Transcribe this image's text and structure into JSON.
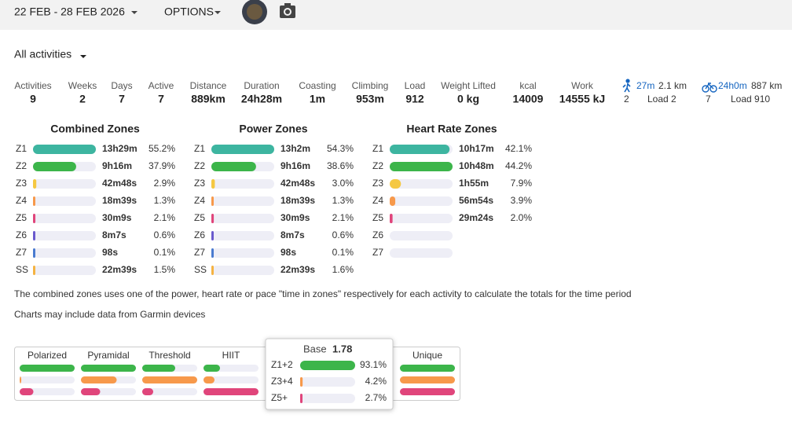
{
  "header": {
    "date_range": "22 FEB - 28 FEB 2026",
    "options": "OPTIONS"
  },
  "filter": "All activities",
  "stats": [
    {
      "label": "Activities",
      "value": "9"
    },
    {
      "label": "Weeks",
      "value": "2"
    },
    {
      "label": "Days",
      "value": "7"
    },
    {
      "label": "Active",
      "value": "7"
    },
    {
      "label": "Distance",
      "value": "889km"
    },
    {
      "label": "Duration",
      "value": "24h28m"
    },
    {
      "label": "Coasting",
      "value": "1m"
    },
    {
      "label": "Climbing",
      "value": "953m"
    },
    {
      "label": "Load",
      "value": "912"
    },
    {
      "label": "Weight Lifted",
      "value": "0 kg"
    },
    {
      "label": "kcal",
      "value": "14009"
    },
    {
      "label": "Work",
      "value": "14555 kJ"
    }
  ],
  "sports": [
    {
      "time": "27m",
      "distance": "2.1 km",
      "count": "2",
      "load": "Load 2"
    },
    {
      "time": "24h0m",
      "distance": "887 km",
      "count": "7",
      "load": "Load 910"
    }
  ],
  "zone_tables": [
    {
      "title": "Combined Zones",
      "rows": [
        {
          "zone": "Z1",
          "color": "#3db5a0",
          "time": "13h29m",
          "percent": {
            "value": 55.2,
            "label": "55.2%"
          }
        },
        {
          "zone": "Z2",
          "color": "#3cb54a",
          "time": "9h16m",
          "percent": {
            "value": 37.9,
            "label": "37.9%"
          }
        },
        {
          "zone": "Z3",
          "color": "#f5c842",
          "time": "42m48s",
          "percent": {
            "value": 2.9,
            "label": "2.9%"
          }
        },
        {
          "zone": "Z4",
          "color": "#f7994b",
          "time": "18m39s",
          "percent": {
            "value": 1.3,
            "label": "1.3%"
          }
        },
        {
          "zone": "Z5",
          "color": "#e0457b",
          "time": "30m9s",
          "percent": {
            "value": 2.1,
            "label": "2.1%"
          }
        },
        {
          "zone": "Z6",
          "color": "#6a5acd",
          "time": "8m7s",
          "percent": {
            "value": 0.6,
            "label": "0.6%"
          }
        },
        {
          "zone": "Z7",
          "color": "#4a7bd0",
          "time": "98s",
          "percent": {
            "value": 0.1,
            "label": "0.1%"
          }
        },
        {
          "zone": "SS",
          "color": "#f5b342",
          "time": "22m39s",
          "percent": {
            "value": 1.5,
            "label": "1.5%"
          }
        }
      ]
    },
    {
      "title": "Power Zones",
      "rows": [
        {
          "zone": "Z1",
          "color": "#3db5a0",
          "time": "13h2m",
          "percent": {
            "value": 54.3,
            "label": "54.3%"
          }
        },
        {
          "zone": "Z2",
          "color": "#3cb54a",
          "time": "9h16m",
          "percent": {
            "value": 38.6,
            "label": "38.6%"
          }
        },
        {
          "zone": "Z3",
          "color": "#f5c842",
          "time": "42m48s",
          "percent": {
            "value": 3.0,
            "label": "3.0%"
          }
        },
        {
          "zone": "Z4",
          "color": "#f7994b",
          "time": "18m39s",
          "percent": {
            "value": 1.3,
            "label": "1.3%"
          }
        },
        {
          "zone": "Z5",
          "color": "#e0457b",
          "time": "30m9s",
          "percent": {
            "value": 2.1,
            "label": "2.1%"
          }
        },
        {
          "zone": "Z6",
          "color": "#6a5acd",
          "time": "8m7s",
          "percent": {
            "value": 0.6,
            "label": "0.6%"
          }
        },
        {
          "zone": "Z7",
          "color": "#4a7bd0",
          "time": "98s",
          "percent": {
            "value": 0.1,
            "label": "0.1%"
          }
        },
        {
          "zone": "SS",
          "color": "#f5b342",
          "time": "22m39s",
          "percent": {
            "value": 1.6,
            "label": "1.6%"
          }
        }
      ]
    },
    {
      "title": "Heart Rate Zones",
      "rows": [
        {
          "zone": "Z1",
          "color": "#3db5a0",
          "time": "10h17m",
          "percent": {
            "value": 42.1,
            "label": "42.1%"
          }
        },
        {
          "zone": "Z2",
          "color": "#3cb54a",
          "time": "10h48m",
          "percent": {
            "value": 44.2,
            "label": "44.2%"
          }
        },
        {
          "zone": "Z3",
          "color": "#f5c842",
          "time": "1h55m",
          "percent": {
            "value": 7.9,
            "label": "7.9%"
          }
        },
        {
          "zone": "Z4",
          "color": "#f7994b",
          "time": "56m54s",
          "percent": {
            "value": 3.9,
            "label": "3.9%"
          }
        },
        {
          "zone": "Z5",
          "color": "#e0457b",
          "time": "29m24s",
          "percent": {
            "value": 2.0,
            "label": "2.0%"
          }
        },
        {
          "zone": "Z6",
          "color": "#6a5acd",
          "time": null,
          "percent": null
        },
        {
          "zone": "Z7",
          "color": "#4a7bd0",
          "time": null,
          "percent": null
        }
      ]
    }
  ],
  "notes": [
    "The combined zones uses one of the power, heart rate or pace \"time in zones\" respectively for each activity to calculate the totals for the time period",
    "Charts may include data from Garmin devices"
  ],
  "profile_colors": [
    "#3cb54a",
    "#f7994b",
    "#e0457b"
  ],
  "profiles": [
    {
      "name": "Polarized",
      "values": [
        100,
        3,
        25
      ]
    },
    {
      "name": "Pyramidal",
      "values": [
        100,
        65,
        35
      ]
    },
    {
      "name": "Threshold",
      "values": [
        60,
        100,
        20
      ]
    },
    {
      "name": "HIIT",
      "values": [
        30,
        20,
        100
      ]
    },
    {
      "name": "Unique",
      "values": [
        100,
        100,
        100
      ]
    }
  ],
  "popup": {
    "title": "Base",
    "score": "1.78",
    "rows": [
      {
        "label": "Z1+2",
        "percent": {
          "value": 93.1,
          "label": "93.1%"
        }
      },
      {
        "label": "Z3+4",
        "percent": {
          "value": 4.2,
          "label": "4.2%"
        }
      },
      {
        "label": "Z5+",
        "percent": {
          "value": 2.7,
          "label": "2.7%"
        }
      }
    ]
  }
}
